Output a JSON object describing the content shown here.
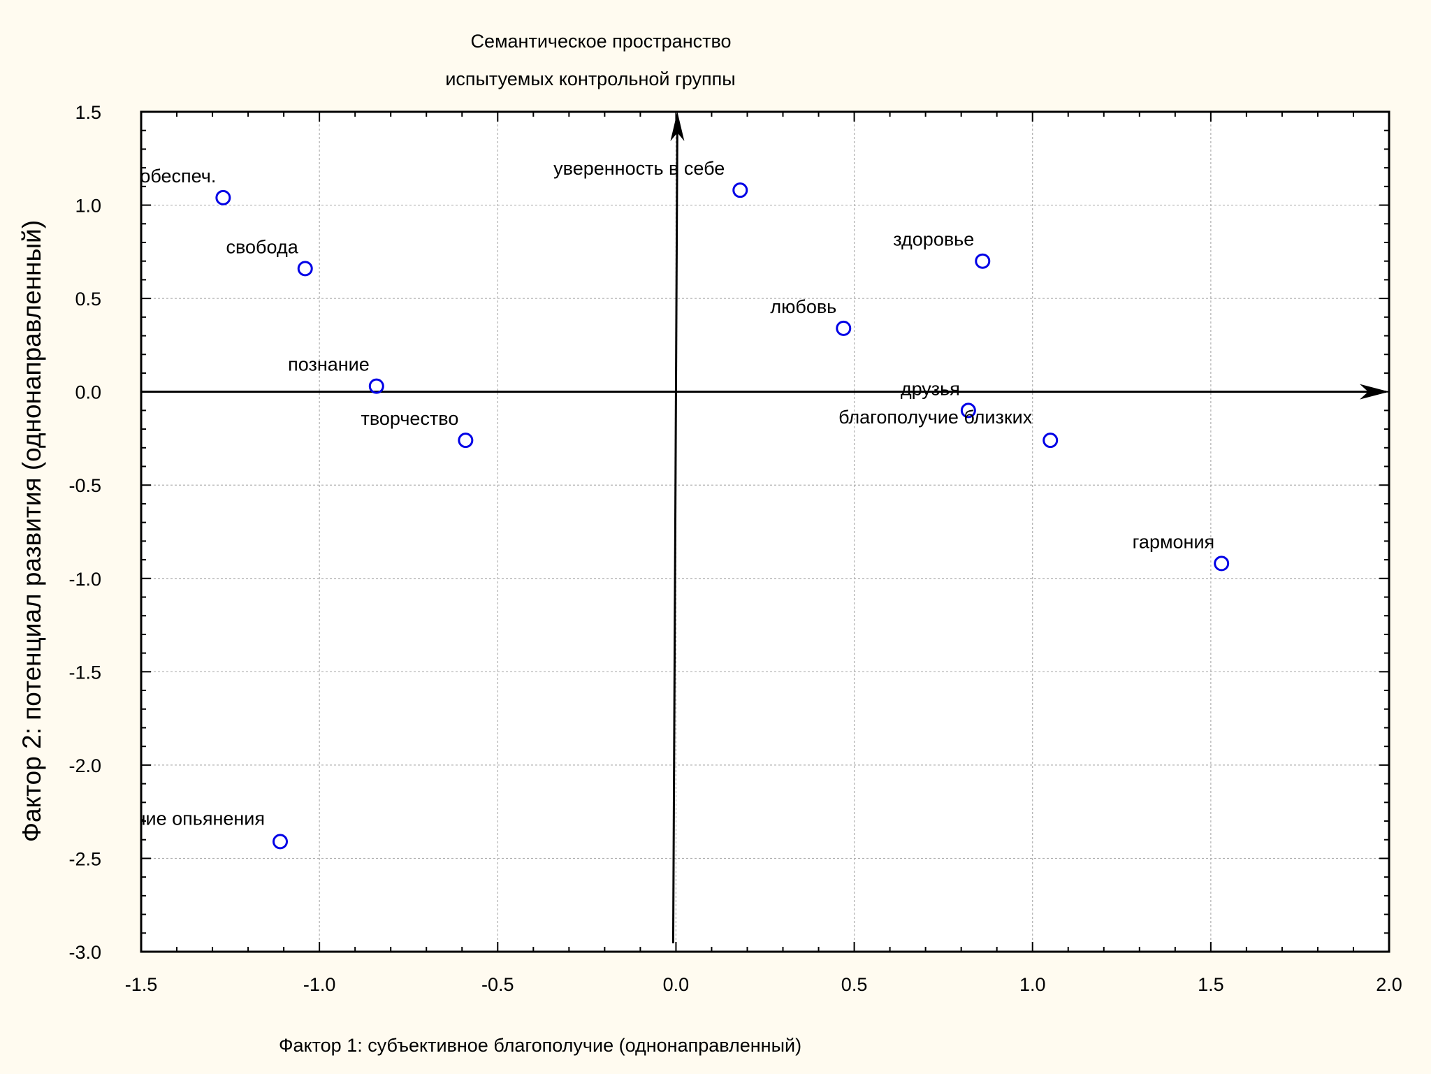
{
  "chart_data": {
    "type": "scatter",
    "title": [
      "Семантическое пространство",
      "испытуемых контрольной группы"
    ],
    "xlabel": "Фактор 1: субъективное благополучие (однонаправленный)",
    "ylabel": "Фактор 2: потенциал развития (однонаправленный)",
    "xlim": [
      -1.5,
      2.0
    ],
    "ylim": [
      -3.0,
      1.5
    ],
    "xticks": [
      "-1.5",
      "-1.0",
      "-0.5",
      "0.0",
      "0.5",
      "1.0",
      "1.5",
      "2.0"
    ],
    "yticks": [
      "1.5",
      "1.0",
      "0.5",
      "0.0",
      "-0.5",
      "-1.0",
      "-1.5",
      "-2.0",
      "-2.5",
      "-3.0"
    ],
    "grid": true,
    "points": [
      {
        "label": "мат. обеспеч.",
        "x": -1.27,
        "y": 1.04
      },
      {
        "label": "свобода",
        "x": -1.04,
        "y": 0.66
      },
      {
        "label": "познание",
        "x": -0.84,
        "y": 0.03
      },
      {
        "label": "творчество",
        "x": -0.59,
        "y": -0.26
      },
      {
        "label": "уверенность в себе",
        "x": 0.18,
        "y": 1.08
      },
      {
        "label": "здоровье",
        "x": 0.86,
        "y": 0.7
      },
      {
        "label": "любовь",
        "x": 0.47,
        "y": 0.34
      },
      {
        "label": "друзья",
        "x": 0.82,
        "y": -0.1
      },
      {
        "label": "благополучие близких",
        "x": 1.05,
        "y": -0.26
      },
      {
        "label": "гармония",
        "x": 1.53,
        "y": -0.92
      },
      {
        "label": "состояние опьянения",
        "x": -1.11,
        "y": -2.41
      }
    ],
    "colors": {
      "point": "#0000e6",
      "grid": "#b0b0b0",
      "background": "#fffbf0",
      "plot_background": "#ffffff"
    }
  }
}
